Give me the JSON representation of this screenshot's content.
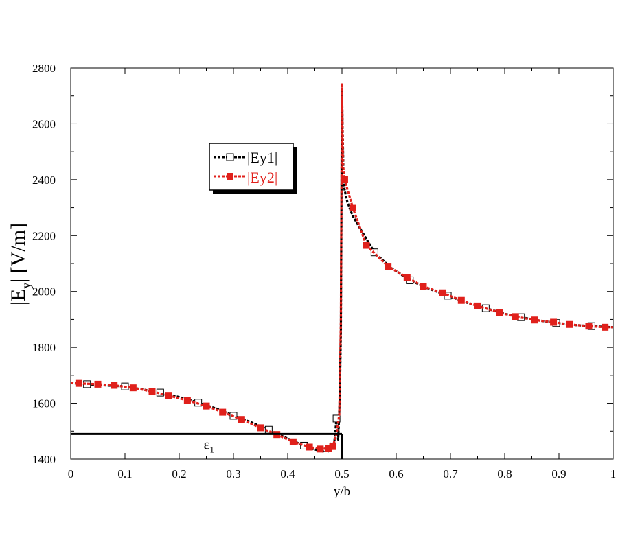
{
  "chart_data": {
    "type": "line",
    "xlabel": "y/b",
    "ylabel": {
      "main": "|E",
      "sub": "y",
      "tail": "| [V/m]"
    },
    "xlim": [
      0,
      1
    ],
    "ylim": [
      1400,
      2800
    ],
    "xticks": [
      0,
      0.1,
      0.2,
      0.3,
      0.4,
      0.5,
      0.6,
      0.7,
      0.8,
      0.9,
      1
    ],
    "xtick_labels": [
      "0",
      "0.1",
      "0.2",
      "0.3",
      "0.4",
      "0.5",
      "0.6",
      "0.7",
      "0.8",
      "0.9",
      "1"
    ],
    "yticks": [
      1400,
      1600,
      1800,
      2000,
      2200,
      2400,
      2600,
      2800
    ],
    "ytick_labels": [
      "1400",
      "1600",
      "1800",
      "2000",
      "2200",
      "2400",
      "2600",
      "2800"
    ],
    "grid": false,
    "legend_position": "upper-left-center",
    "series": [
      {
        "name": "|Ey1|",
        "color": "#000000",
        "marker": "open-square",
        "points": [
          [
            0,
            1672
          ],
          [
            0.03,
            1668
          ],
          [
            0.07,
            1663
          ],
          [
            0.1,
            1660
          ],
          [
            0.13,
            1650
          ],
          [
            0.165,
            1638
          ],
          [
            0.2,
            1622
          ],
          [
            0.235,
            1602
          ],
          [
            0.27,
            1580
          ],
          [
            0.3,
            1555
          ],
          [
            0.335,
            1530
          ],
          [
            0.365,
            1505
          ],
          [
            0.39,
            1482
          ],
          [
            0.41,
            1465
          ],
          [
            0.43,
            1448
          ],
          [
            0.445,
            1437
          ],
          [
            0.455,
            1432
          ],
          [
            0.46,
            1437
          ],
          [
            0.465,
            1427
          ],
          [
            0.47,
            1440
          ],
          [
            0.475,
            1428
          ],
          [
            0.48,
            1460
          ],
          [
            0.485,
            1440
          ],
          [
            0.49,
            1545
          ],
          [
            0.493,
            1470
          ],
          [
            0.496,
            1620
          ],
          [
            0.498,
            1850
          ],
          [
            0.5,
            2720
          ],
          [
            0.503,
            2380
          ],
          [
            0.51,
            2320
          ],
          [
            0.52,
            2270
          ],
          [
            0.535,
            2220
          ],
          [
            0.56,
            2140
          ],
          [
            0.59,
            2085
          ],
          [
            0.625,
            2040
          ],
          [
            0.66,
            2010
          ],
          [
            0.695,
            1985
          ],
          [
            0.73,
            1960
          ],
          [
            0.765,
            1940
          ],
          [
            0.8,
            1920
          ],
          [
            0.83,
            1908
          ],
          [
            0.86,
            1897
          ],
          [
            0.895,
            1887
          ],
          [
            0.93,
            1880
          ],
          [
            0.96,
            1876
          ],
          [
            1.0,
            1872
          ]
        ],
        "markers": [
          [
            0.03,
            1668
          ],
          [
            0.1,
            1660
          ],
          [
            0.165,
            1638
          ],
          [
            0.235,
            1602
          ],
          [
            0.3,
            1555
          ],
          [
            0.365,
            1505
          ],
          [
            0.43,
            1448
          ],
          [
            0.49,
            1545
          ],
          [
            0.56,
            2140
          ],
          [
            0.625,
            2040
          ],
          [
            0.695,
            1985
          ],
          [
            0.765,
            1940
          ],
          [
            0.83,
            1908
          ],
          [
            0.895,
            1887
          ],
          [
            0.96,
            1876
          ]
        ]
      },
      {
        "name": "|Ey2|",
        "color": "#e0201b",
        "marker": "filled-square",
        "points": [
          [
            0,
            1672
          ],
          [
            0.015,
            1671
          ],
          [
            0.05,
            1668
          ],
          [
            0.08,
            1664
          ],
          [
            0.115,
            1655
          ],
          [
            0.15,
            1642
          ],
          [
            0.18,
            1628
          ],
          [
            0.215,
            1610
          ],
          [
            0.25,
            1590
          ],
          [
            0.28,
            1568
          ],
          [
            0.315,
            1542
          ],
          [
            0.35,
            1512
          ],
          [
            0.38,
            1488
          ],
          [
            0.41,
            1462
          ],
          [
            0.44,
            1443
          ],
          [
            0.46,
            1436
          ],
          [
            0.475,
            1438
          ],
          [
            0.483,
            1445
          ],
          [
            0.49,
            1490
          ],
          [
            0.495,
            1560
          ],
          [
            0.498,
            1900
          ],
          [
            0.5,
            2745
          ],
          [
            0.502,
            2450
          ],
          [
            0.505,
            2400
          ],
          [
            0.52,
            2300
          ],
          [
            0.545,
            2165
          ],
          [
            0.585,
            2090
          ],
          [
            0.62,
            2050
          ],
          [
            0.65,
            2018
          ],
          [
            0.685,
            1995
          ],
          [
            0.72,
            1968
          ],
          [
            0.75,
            1948
          ],
          [
            0.79,
            1925
          ],
          [
            0.82,
            1910
          ],
          [
            0.855,
            1898
          ],
          [
            0.89,
            1890
          ],
          [
            0.92,
            1882
          ],
          [
            0.955,
            1876
          ],
          [
            0.985,
            1872
          ],
          [
            1.0,
            1872
          ]
        ],
        "markers": [
          [
            0.015,
            1671
          ],
          [
            0.05,
            1668
          ],
          [
            0.08,
            1664
          ],
          [
            0.115,
            1655
          ],
          [
            0.15,
            1642
          ],
          [
            0.18,
            1628
          ],
          [
            0.215,
            1610
          ],
          [
            0.25,
            1590
          ],
          [
            0.28,
            1568
          ],
          [
            0.315,
            1542
          ],
          [
            0.35,
            1512
          ],
          [
            0.38,
            1488
          ],
          [
            0.41,
            1462
          ],
          [
            0.44,
            1443
          ],
          [
            0.46,
            1436
          ],
          [
            0.475,
            1438
          ],
          [
            0.483,
            1445
          ],
          [
            0.505,
            2400
          ],
          [
            0.52,
            2300
          ],
          [
            0.545,
            2165
          ],
          [
            0.585,
            2090
          ],
          [
            0.62,
            2050
          ],
          [
            0.65,
            2018
          ],
          [
            0.685,
            1995
          ],
          [
            0.72,
            1968
          ],
          [
            0.75,
            1948
          ],
          [
            0.79,
            1925
          ],
          [
            0.82,
            1910
          ],
          [
            0.855,
            1898
          ],
          [
            0.89,
            1890
          ],
          [
            0.92,
            1882
          ],
          [
            0.955,
            1876
          ],
          [
            0.985,
            1872
          ]
        ]
      }
    ],
    "annotations": {
      "epsilon_region": {
        "label": "ε",
        "subscript": "1",
        "y_level": 1490,
        "x_start": 0,
        "x_end": 0.5
      }
    }
  }
}
